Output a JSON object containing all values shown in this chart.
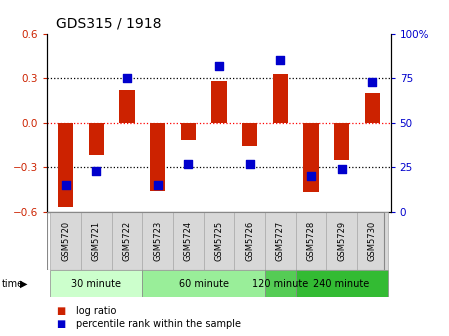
{
  "title": "GDS315 / 1918",
  "samples": [
    "GSM5720",
    "GSM5721",
    "GSM5722",
    "GSM5723",
    "GSM5724",
    "GSM5725",
    "GSM5726",
    "GSM5727",
    "GSM5728",
    "GSM5729",
    "GSM5730"
  ],
  "log_ratio": [
    -0.57,
    -0.22,
    0.22,
    -0.46,
    -0.12,
    0.28,
    -0.16,
    0.33,
    -0.47,
    -0.25,
    0.2
  ],
  "percentile": [
    15,
    23,
    75,
    15,
    27,
    82,
    27,
    85,
    20,
    24,
    73
  ],
  "ylim_left": [
    -0.6,
    0.6
  ],
  "ylim_right": [
    0,
    100
  ],
  "yticks_left": [
    -0.6,
    -0.3,
    0.0,
    0.3,
    0.6
  ],
  "yticks_right": [
    0,
    25,
    50,
    75,
    100
  ],
  "ytick_labels_right": [
    "0",
    "25",
    "50",
    "75",
    "100%"
  ],
  "bar_color": "#cc2200",
  "scatter_color": "#0000cc",
  "groups": [
    {
      "label": "30 minute",
      "start": 0,
      "end": 2,
      "color": "#ccffcc"
    },
    {
      "label": "60 minute",
      "start": 3,
      "end": 6,
      "color": "#99ee99"
    },
    {
      "label": "120 minute",
      "start": 7,
      "end": 7,
      "color": "#55cc55"
    },
    {
      "label": "240 minute",
      "start": 8,
      "end": 10,
      "color": "#33bb33"
    }
  ],
  "legend_items": [
    {
      "label": "log ratio",
      "color": "#cc2200"
    },
    {
      "label": "percentile rank within the sample",
      "color": "#0000cc"
    }
  ],
  "background_color": "#ffffff",
  "tick_label_color_left": "#cc2200",
  "tick_label_color_right": "#0000cc",
  "bar_width": 0.5,
  "scatter_size": 28,
  "figsize": [
    4.49,
    3.36
  ],
  "dpi": 100
}
